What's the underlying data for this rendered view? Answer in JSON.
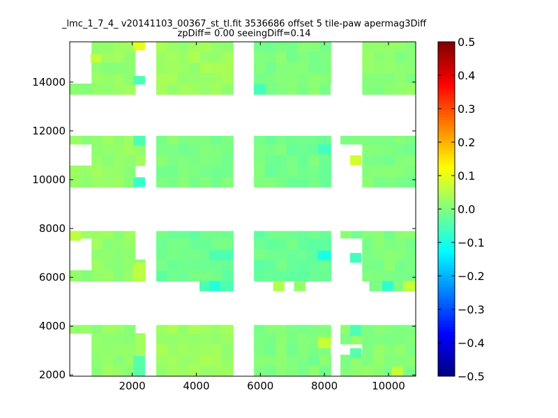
{
  "chart_data": {
    "type": "heatmap",
    "title": "_lmc_1_7_4_ v20141103_00367_st_tl.fit 3536686 offset 5 tile-paw apermag3Diff",
    "subtitle": "zpDiff= 0.00 seeingDiff=0.14",
    "xlabel": "",
    "ylabel": "",
    "xlim": [
      50,
      10850
    ],
    "ylim": [
      1950,
      15650
    ],
    "x_ticks": [
      2000,
      4000,
      6000,
      8000,
      10000
    ],
    "y_ticks": [
      2000,
      4000,
      6000,
      8000,
      10000,
      12000,
      14000
    ],
    "colorbar": {
      "colormap": "jet",
      "range": [
        -0.5,
        0.5
      ],
      "ticks": [
        "0.5",
        "0.4",
        "0.3",
        "0.2",
        "0.1",
        "0.0",
        "−0.1",
        "−0.2",
        "−0.3",
        "−0.4",
        "−0.5"
      ]
    },
    "cell_size": [
      340,
      440
    ],
    "dominant_value": 0.02,
    "tiles": [
      {
        "x": [
          50,
          2400
        ],
        "y": [
          1950,
          4050
        ],
        "value": 0.02,
        "holes": [
          {
            "x": [
              50,
              720
            ],
            "y": [
              1950,
              3600
            ]
          },
          {
            "x": [
              2040,
              2400
            ],
            "y": [
              1950,
              2800
            ]
          },
          {
            "x": [
              2040,
              2400
            ],
            "y": [
              3600,
              4050
            ]
          }
        ]
      },
      {
        "x": [
          2750,
          5150
        ],
        "y": [
          1950,
          4050
        ],
        "value": 0.03
      },
      {
        "x": [
          5800,
          8200
        ],
        "y": [
          1950,
          4050
        ],
        "value": 0.0,
        "holes": [
          {
            "x": [
              7900,
              8200
            ],
            "y": [
              2500,
              3100
            ]
          }
        ]
      },
      {
        "x": [
          8500,
          10850
        ],
        "y": [
          1950,
          4050
        ],
        "value": 0.01,
        "holes": [
          {
            "x": [
              8500,
              8900
            ],
            "y": [
              2500,
              3100
            ]
          }
        ]
      },
      {
        "x": [
          50,
          2400
        ],
        "y": [
          5850,
          7900
        ],
        "value": 0.02,
        "holes": [
          {
            "x": [
              50,
              720
            ],
            "y": [
              6250,
              7500
            ]
          },
          {
            "x": [
              2040,
              2400
            ],
            "y": [
              6600,
              7900
            ]
          }
        ]
      },
      {
        "x": [
          2750,
          5150
        ],
        "y": [
          5850,
          7900
        ],
        "value": -0.02
      },
      {
        "x": [
          5800,
          8200
        ],
        "y": [
          5850,
          7900
        ],
        "value": -0.02
      },
      {
        "x": [
          8500,
          10850
        ],
        "y": [
          5850,
          7900
        ],
        "value": 0.0,
        "holes": [
          {
            "x": [
              8500,
              8900
            ],
            "y": [
              5850,
              7500
            ]
          }
        ]
      },
      {
        "x": [
          50,
          2400
        ],
        "y": [
          9700,
          11800
        ],
        "value": 0.02,
        "holes": [
          {
            "x": [
              50,
              720
            ],
            "y": [
              10150,
              11400
            ]
          },
          {
            "x": [
              2040,
              2400
            ],
            "y": [
              9700,
              10450
            ]
          }
        ]
      },
      {
        "x": [
          2750,
          5150
        ],
        "y": [
          9700,
          11800
        ],
        "value": 0.0
      },
      {
        "x": [
          5800,
          8200
        ],
        "y": [
          9700,
          11800
        ],
        "value": -0.01
      },
      {
        "x": [
          8500,
          10850
        ],
        "y": [
          9700,
          11800
        ],
        "value": 0.0,
        "holes": [
          {
            "x": [
              8500,
              8900
            ],
            "y": [
              9700,
              11400
            ]
          }
        ]
      },
      {
        "x": [
          50,
          2400
        ],
        "y": [
          13500,
          15650
        ],
        "value": 0.02,
        "holes": [
          {
            "x": [
              50,
              720
            ],
            "y": [
              13900,
              15300
            ]
          },
          {
            "x": [
              2040,
              2400
            ],
            "y": [
              13500,
              15300
            ]
          }
        ]
      },
      {
        "x": [
          2750,
          5150
        ],
        "y": [
          13500,
          15650
        ],
        "value": 0.03
      },
      {
        "x": [
          5800,
          8200
        ],
        "y": [
          13500,
          15650
        ],
        "value": 0.0,
        "holes": [
          {
            "x": [
              7900,
              8200
            ],
            "y": [
              13500,
              13900
            ]
          }
        ]
      },
      {
        "x": [
          8500,
          10850
        ],
        "y": [
          13500,
          15650
        ],
        "value": 0.01,
        "holes": [
          {
            "x": [
              8500,
              8900
            ],
            "y": [
              13500,
              15650
            ]
          }
        ]
      },
      {
        "x": [
          4100,
          5150
        ],
        "y": [
          5450,
          5850
        ],
        "value": -0.04
      },
      {
        "x": [
          6400,
          6740
        ],
        "y": [
          5450,
          5850
        ],
        "value": 0.06
      },
      {
        "x": [
          7050,
          7400
        ],
        "y": [
          5450,
          5850
        ],
        "value": 0.03
      },
      {
        "x": [
          9400,
          10850
        ],
        "y": [
          5450,
          5850
        ],
        "value": 0.0
      }
    ],
    "highlights": [
      {
        "x": [
          2040,
          2400
        ],
        "y": [
          15300,
          15650
        ],
        "value": 0.1
      },
      {
        "x": [
          700,
          1050
        ],
        "y": [
          14800,
          15150
        ],
        "value": 0.07
      },
      {
        "x": [
          2040,
          2400
        ],
        "y": [
          13900,
          14250
        ],
        "value": -0.05
      },
      {
        "x": [
          5800,
          6150
        ],
        "y": [
          13500,
          13900
        ],
        "value": -0.06
      },
      {
        "x": [
          2040,
          2400
        ],
        "y": [
          11400,
          11800
        ],
        "value": -0.05
      },
      {
        "x": [
          2040,
          2400
        ],
        "y": [
          9700,
          10100
        ],
        "value": -0.07
      },
      {
        "x": [
          7800,
          8200
        ],
        "y": [
          11050,
          11450
        ],
        "value": -0.06
      },
      {
        "x": [
          8800,
          9150
        ],
        "y": [
          10600,
          11000
        ],
        "value": 0.08
      },
      {
        "x": [
          50,
          400
        ],
        "y": [
          7500,
          7900
        ],
        "value": 0.06
      },
      {
        "x": [
          7800,
          8200
        ],
        "y": [
          6700,
          7100
        ],
        "value": -0.1
      },
      {
        "x": [
          4400,
          5150
        ],
        "y": [
          6700,
          7100
        ],
        "value": -0.05
      },
      {
        "x": [
          8800,
          9150
        ],
        "y": [
          6600,
          7000
        ],
        "value": -0.06
      },
      {
        "x": [
          2040,
          2400
        ],
        "y": [
          5850,
          6600
        ],
        "value": 0.06
      },
      {
        "x": [
          4400,
          4750
        ],
        "y": [
          5450,
          5850
        ],
        "value": -0.09
      },
      {
        "x": [
          9800,
          10150
        ],
        "y": [
          5450,
          5850
        ],
        "value": -0.08
      },
      {
        "x": [
          10450,
          10850
        ],
        "y": [
          5450,
          5850
        ],
        "value": 0.07
      },
      {
        "x": [
          8800,
          9150
        ],
        "y": [
          3600,
          4050
        ],
        "value": -0.05
      },
      {
        "x": [
          7800,
          8200
        ],
        "y": [
          3100,
          3550
        ],
        "value": 0.07
      },
      {
        "x": [
          8800,
          9150
        ],
        "y": [
          2700,
          3100
        ],
        "value": -0.04
      },
      {
        "x": [
          2040,
          2400
        ],
        "y": [
          1950,
          2800
        ],
        "value": -0.04
      },
      {
        "x": [
          10100,
          10450
        ],
        "y": [
          1950,
          2350
        ],
        "value": 0.07
      }
    ]
  }
}
